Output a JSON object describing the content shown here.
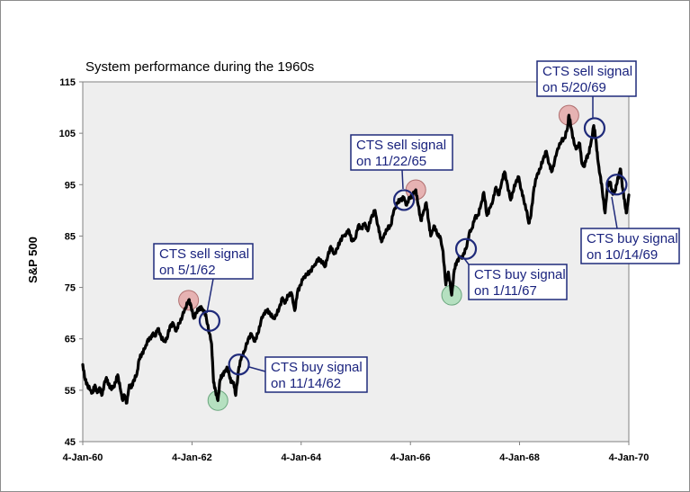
{
  "chart_data": {
    "type": "line",
    "title": "System performance during the 1960s",
    "ylabel": "S&P 500",
    "xlabel": "",
    "ylim": [
      45,
      115
    ],
    "yticks": [
      45,
      55,
      65,
      75,
      85,
      95,
      105,
      115
    ],
    "xlim": [
      "1960-01-04",
      "1970-01-04"
    ],
    "xticks": [
      {
        "date": "1960-01-04",
        "label": "4-Jan-60"
      },
      {
        "date": "1962-01-04",
        "label": "4-Jan-62"
      },
      {
        "date": "1964-01-04",
        "label": "4-Jan-64"
      },
      {
        "date": "1966-01-04",
        "label": "4-Jan-66"
      },
      {
        "date": "1968-01-04",
        "label": "4-Jan-68"
      },
      {
        "date": "1970-01-04",
        "label": "4-Jan-70"
      }
    ],
    "grid": false,
    "plot_background": "#eeeeee",
    "line_color": "#000000",
    "series": [
      {
        "name": "",
        "points": [
          [
            "1960-01-04",
            60
          ],
          [
            "1960-01-20",
            57
          ],
          [
            "1960-02-05",
            56
          ],
          [
            "1960-02-25",
            55
          ],
          [
            "1960-03-10",
            54.5
          ],
          [
            "1960-03-25",
            56
          ],
          [
            "1960-04-10",
            54.5
          ],
          [
            "1960-04-25",
            55.5
          ],
          [
            "1960-05-10",
            54
          ],
          [
            "1960-05-25",
            56
          ],
          [
            "1960-06-10",
            57.5
          ],
          [
            "1960-06-25",
            56
          ],
          [
            "1960-07-10",
            55.5
          ],
          [
            "1960-07-25",
            55.5
          ],
          [
            "1960-08-10",
            56.5
          ],
          [
            "1960-08-25",
            58
          ],
          [
            "1960-09-10",
            55.5
          ],
          [
            "1960-09-28",
            53
          ],
          [
            "1960-10-10",
            54
          ],
          [
            "1960-10-25",
            52.5
          ],
          [
            "1960-11-10",
            56
          ],
          [
            "1960-11-25",
            55.5
          ],
          [
            "1960-12-10",
            57
          ],
          [
            "1960-12-30",
            58
          ],
          [
            "1961-01-15",
            61
          ],
          [
            "1961-02-01",
            62
          ],
          [
            "1961-02-20",
            63
          ],
          [
            "1961-03-10",
            64.5
          ],
          [
            "1961-03-30",
            65
          ],
          [
            "1961-04-15",
            66
          ],
          [
            "1961-05-01",
            65.5
          ],
          [
            "1961-05-20",
            67
          ],
          [
            "1961-06-10",
            65.5
          ],
          [
            "1961-06-30",
            64.5
          ],
          [
            "1961-07-20",
            65
          ],
          [
            "1961-08-10",
            67.5
          ],
          [
            "1961-09-01",
            68
          ],
          [
            "1961-09-20",
            66.5
          ],
          [
            "1961-10-10",
            68
          ],
          [
            "1961-11-01",
            69.5
          ],
          [
            "1961-11-20",
            71
          ],
          [
            "1961-12-12",
            72.5
          ],
          [
            "1961-12-28",
            71.5
          ],
          [
            "1962-01-15",
            69
          ],
          [
            "1962-02-01",
            70
          ],
          [
            "1962-02-20",
            71
          ],
          [
            "1962-03-10",
            71
          ],
          [
            "1962-03-25",
            70.5
          ],
          [
            "1962-04-10",
            69
          ],
          [
            "1962-05-01",
            66
          ],
          [
            "1962-05-15",
            64
          ],
          [
            "1962-05-28",
            56.5
          ],
          [
            "1962-06-10",
            55
          ],
          [
            "1962-06-26",
            53
          ],
          [
            "1962-07-10",
            57
          ],
          [
            "1962-07-25",
            58
          ],
          [
            "1962-08-10",
            58.5
          ],
          [
            "1962-08-25",
            59.5
          ],
          [
            "1962-09-10",
            58
          ],
          [
            "1962-09-25",
            56.5
          ],
          [
            "1962-10-10",
            56.5
          ],
          [
            "1962-10-23",
            54
          ],
          [
            "1962-11-14",
            59.5
          ],
          [
            "1962-12-01",
            61.5
          ],
          [
            "1962-12-20",
            62.5
          ],
          [
            "1963-01-15",
            65
          ],
          [
            "1963-02-05",
            66
          ],
          [
            "1963-03-01",
            64.5
          ],
          [
            "1963-03-20",
            66
          ],
          [
            "1963-04-10",
            68.5
          ],
          [
            "1963-05-01",
            70
          ],
          [
            "1963-05-20",
            70.5
          ],
          [
            "1963-06-10",
            70
          ],
          [
            "1963-07-01",
            69
          ],
          [
            "1963-07-20",
            69.5
          ],
          [
            "1963-08-10",
            71
          ],
          [
            "1963-09-01",
            73
          ],
          [
            "1963-09-20",
            72
          ],
          [
            "1963-10-10",
            73.5
          ],
          [
            "1963-10-30",
            74
          ],
          [
            "1963-11-22",
            70.5
          ],
          [
            "1963-12-10",
            74
          ],
          [
            "1963-12-30",
            75.5
          ],
          [
            "1964-01-20",
            77
          ],
          [
            "1964-02-10",
            77.5
          ],
          [
            "1964-03-01",
            78
          ],
          [
            "1964-03-25",
            79
          ],
          [
            "1964-04-15",
            80
          ],
          [
            "1964-05-05",
            80.5
          ],
          [
            "1964-05-25",
            80
          ],
          [
            "1964-06-10",
            79
          ],
          [
            "1964-06-30",
            81
          ],
          [
            "1964-07-20",
            83
          ],
          [
            "1964-08-10",
            81.5
          ],
          [
            "1964-09-01",
            82.5
          ],
          [
            "1964-09-20",
            84
          ],
          [
            "1964-10-10",
            85
          ],
          [
            "1964-11-01",
            85.5
          ],
          [
            "1964-11-20",
            86
          ],
          [
            "1964-12-10",
            84
          ],
          [
            "1964-12-30",
            84.5
          ],
          [
            "1965-01-20",
            87
          ],
          [
            "1965-02-10",
            86.5
          ],
          [
            "1965-03-05",
            87.5
          ],
          [
            "1965-03-25",
            86
          ],
          [
            "1965-04-15",
            88.5
          ],
          [
            "1965-05-12",
            90
          ],
          [
            "1965-06-01",
            87
          ],
          [
            "1965-06-15",
            85
          ],
          [
            "1965-06-28",
            84
          ],
          [
            "1965-07-15",
            85.5
          ],
          [
            "1965-08-05",
            86.5
          ],
          [
            "1965-08-25",
            87
          ],
          [
            "1965-09-15",
            90
          ],
          [
            "1965-10-10",
            91.5
          ],
          [
            "1965-10-25",
            92
          ],
          [
            "1965-11-22",
            92.5
          ],
          [
            "1965-12-10",
            91
          ],
          [
            "1965-12-30",
            92.5
          ],
          [
            "1966-01-20",
            93
          ],
          [
            "1966-02-09",
            94
          ],
          [
            "1966-02-25",
            91
          ],
          [
            "1966-03-15",
            88
          ],
          [
            "1966-03-30",
            89.5
          ],
          [
            "1966-04-20",
            91.5
          ],
          [
            "1966-05-05",
            88
          ],
          [
            "1966-05-20",
            85
          ],
          [
            "1966-06-10",
            87
          ],
          [
            "1966-06-30",
            85.5
          ],
          [
            "1966-07-20",
            85
          ],
          [
            "1966-08-10",
            82
          ],
          [
            "1966-08-29",
            75.5
          ],
          [
            "1966-09-15",
            78
          ],
          [
            "1966-10-07",
            73.5
          ],
          [
            "1966-10-25",
            78.5
          ],
          [
            "1966-11-10",
            80
          ],
          [
            "1966-12-01",
            81
          ],
          [
            "1966-12-20",
            81
          ],
          [
            "1967-01-11",
            82.5
          ],
          [
            "1967-02-01",
            85.5
          ],
          [
            "1967-02-20",
            86.5
          ],
          [
            "1967-03-10",
            88.5
          ],
          [
            "1967-04-01",
            89
          ],
          [
            "1967-04-20",
            91
          ],
          [
            "1967-05-10",
            93.5
          ],
          [
            "1967-05-31",
            89
          ],
          [
            "1967-06-20",
            90.5
          ],
          [
            "1967-07-10",
            92
          ],
          [
            "1967-07-31",
            94.5
          ],
          [
            "1967-08-20",
            93
          ],
          [
            "1967-09-10",
            96
          ],
          [
            "1967-09-25",
            97.5
          ],
          [
            "1967-10-15",
            95
          ],
          [
            "1967-11-05",
            92
          ],
          [
            "1967-11-20",
            93.5
          ],
          [
            "1967-12-10",
            95.5
          ],
          [
            "1967-12-30",
            96.5
          ],
          [
            "1968-01-15",
            94
          ],
          [
            "1968-02-01",
            92
          ],
          [
            "1968-02-20",
            90
          ],
          [
            "1968-03-05",
            87.5
          ],
          [
            "1968-03-20",
            89
          ],
          [
            "1968-04-10",
            94.5
          ],
          [
            "1968-05-01",
            97
          ],
          [
            "1968-05-20",
            98
          ],
          [
            "1968-06-10",
            100
          ],
          [
            "1968-07-01",
            101.5
          ],
          [
            "1968-07-20",
            99
          ],
          [
            "1968-08-05",
            97.5
          ],
          [
            "1968-08-25",
            99.5
          ],
          [
            "1968-09-15",
            102
          ],
          [
            "1968-10-10",
            103.5
          ],
          [
            "1968-10-30",
            104
          ],
          [
            "1968-11-20",
            106
          ],
          [
            "1968-11-29",
            108.5
          ],
          [
            "1968-12-15",
            106
          ],
          [
            "1969-01-03",
            103
          ],
          [
            "1969-01-20",
            102
          ],
          [
            "1969-02-10",
            103
          ],
          [
            "1969-02-25",
            99
          ],
          [
            "1969-03-10",
            98.5
          ],
          [
            "1969-03-25",
            100
          ],
          [
            "1969-04-10",
            101
          ],
          [
            "1969-04-25",
            103
          ],
          [
            "1969-05-14",
            106.5
          ],
          [
            "1969-05-28",
            104
          ],
          [
            "1969-06-10",
            100
          ],
          [
            "1969-06-25",
            97
          ],
          [
            "1969-07-10",
            94
          ],
          [
            "1969-07-29",
            89.5
          ],
          [
            "1969-08-15",
            95
          ],
          [
            "1969-09-01",
            95.5
          ],
          [
            "1969-09-15",
            93.5
          ],
          [
            "1969-09-30",
            93.5
          ],
          [
            "1969-10-14",
            95
          ],
          [
            "1969-10-30",
            97
          ],
          [
            "1969-11-10",
            98
          ],
          [
            "1969-11-25",
            94
          ],
          [
            "1969-12-10",
            91
          ],
          [
            "1969-12-20",
            89.5
          ],
          [
            "1970-01-04",
            93
          ]
        ]
      }
    ],
    "markers": [
      {
        "kind": "sell",
        "date": "1961-12-12",
        "value": 72.5
      },
      {
        "kind": "sell",
        "date": "1966-02-09",
        "value": 94
      },
      {
        "kind": "sell",
        "date": "1968-11-29",
        "value": 108.5
      },
      {
        "kind": "buy",
        "date": "1962-06-26",
        "value": 53
      },
      {
        "kind": "buy",
        "date": "1966-10-07",
        "value": 73.5
      }
    ],
    "signals": [
      {
        "date": "1962-05-01",
        "value": 68.5
      },
      {
        "date": "1962-11-14",
        "value": 60
      },
      {
        "date": "1965-11-22",
        "value": 92
      },
      {
        "date": "1967-01-11",
        "value": 82.5
      },
      {
        "date": "1969-05-20",
        "value": 106
      },
      {
        "date": "1969-10-14",
        "value": 95
      }
    ],
    "annotations": [
      {
        "line1": "CTS sell signal",
        "line2": "on 5/1/62"
      },
      {
        "line1": "CTS buy signal",
        "line2": "on 11/14/62"
      },
      {
        "line1": "CTS sell signal",
        "line2": "on 11/22/65"
      },
      {
        "line1": "CTS buy signal",
        "line2": "on 1/11/67"
      },
      {
        "line1": "CTS sell signal",
        "line2": "on 5/20/69"
      },
      {
        "line1": "CTS buy signal",
        "line2": "on 10/14/69"
      }
    ]
  }
}
